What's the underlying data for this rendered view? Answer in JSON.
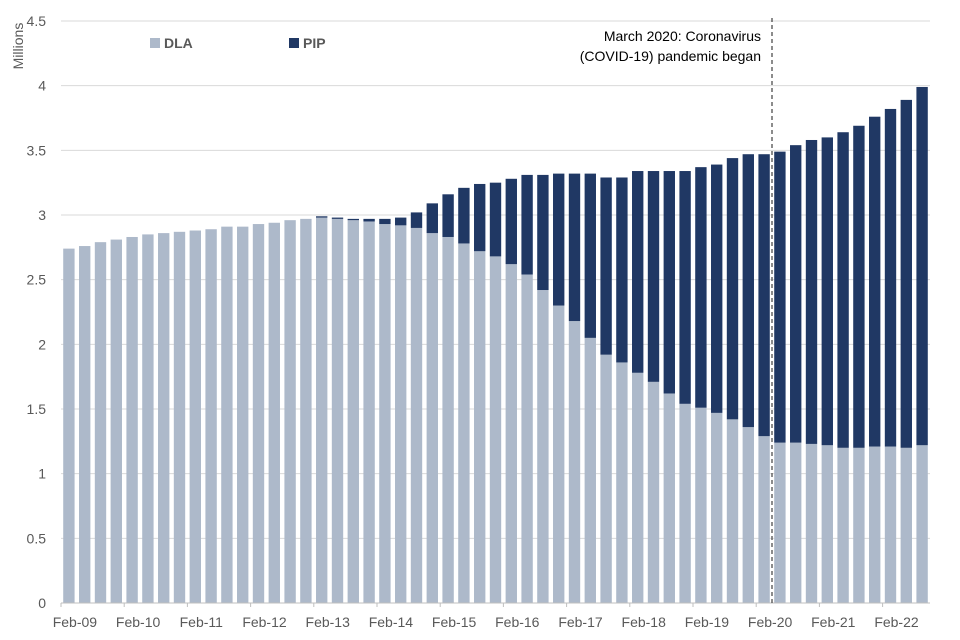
{
  "chart_data": {
    "type": "bar",
    "stacked": true,
    "ylabel": "Millions",
    "ylim": [
      0,
      4.5
    ],
    "yticks": [
      "0",
      "0.5",
      "1",
      "1.5",
      "2",
      "2.5",
      "3",
      "3.5",
      "4",
      "4.5"
    ],
    "grid": true,
    "legend_placement": "top-left",
    "categories": [
      "Feb-09",
      "May-09",
      "Aug-09",
      "Nov-09",
      "Feb-10",
      "May-10",
      "Aug-10",
      "Nov-10",
      "Feb-11",
      "May-11",
      "Aug-11",
      "Nov-11",
      "Feb-12",
      "May-12",
      "Aug-12",
      "Nov-12",
      "Feb-13",
      "May-13",
      "Aug-13",
      "Nov-13",
      "Feb-14",
      "May-14",
      "Aug-14",
      "Nov-14",
      "Feb-15",
      "May-15",
      "Aug-15",
      "Nov-15",
      "Feb-16",
      "May-16",
      "Aug-16",
      "Nov-16",
      "Feb-17",
      "May-17",
      "Aug-17",
      "Nov-17",
      "Feb-18",
      "May-18",
      "Aug-18",
      "Nov-18",
      "Feb-19",
      "May-19",
      "Aug-19",
      "Nov-19",
      "Feb-20",
      "May-20",
      "Aug-20",
      "Nov-20",
      "Feb-21",
      "May-21",
      "Aug-21",
      "Nov-21",
      "Feb-22",
      "May-22",
      "Aug-22"
    ],
    "xtick_labels": [
      "Feb-09",
      "Feb-10",
      "Feb-11",
      "Feb-12",
      "Feb-13",
      "Feb-14",
      "Feb-15",
      "Feb-16",
      "Feb-17",
      "Feb-18",
      "Feb-19",
      "Feb-20",
      "Feb-21",
      "Feb-22"
    ],
    "series": [
      {
        "name": "DLA",
        "color": "#adb9ca",
        "values": [
          2.74,
          2.76,
          2.79,
          2.81,
          2.83,
          2.85,
          2.86,
          2.87,
          2.88,
          2.89,
          2.91,
          2.91,
          2.93,
          2.94,
          2.96,
          2.97,
          2.98,
          2.97,
          2.96,
          2.95,
          2.93,
          2.92,
          2.9,
          2.86,
          2.83,
          2.78,
          2.72,
          2.68,
          2.62,
          2.54,
          2.42,
          2.3,
          2.18,
          2.05,
          1.92,
          1.86,
          1.78,
          1.71,
          1.62,
          1.54,
          1.51,
          1.47,
          1.42,
          1.36,
          1.29,
          1.24,
          1.24,
          1.23,
          1.22,
          1.2,
          1.2,
          1.21,
          1.21,
          1.2,
          1.22
        ]
      },
      {
        "name": "PIP",
        "color": "#203864",
        "values": [
          0,
          0,
          0,
          0,
          0,
          0,
          0,
          0,
          0,
          0,
          0,
          0,
          0,
          0,
          0,
          0,
          0.01,
          0.01,
          0.01,
          0.02,
          0.04,
          0.06,
          0.12,
          0.23,
          0.33,
          0.43,
          0.52,
          0.57,
          0.66,
          0.77,
          0.89,
          1.02,
          1.14,
          1.27,
          1.37,
          1.43,
          1.56,
          1.63,
          1.72,
          1.8,
          1.86,
          1.92,
          2.02,
          2.11,
          2.18,
          2.25,
          2.3,
          2.35,
          2.38,
          2.44,
          2.49,
          2.55,
          2.61,
          2.69,
          2.77
        ]
      }
    ],
    "annotation": {
      "category": "Mar-20",
      "lines": [
        "March 2020: Coronavirus",
        "(COVID-19) pandemic began"
      ]
    }
  }
}
